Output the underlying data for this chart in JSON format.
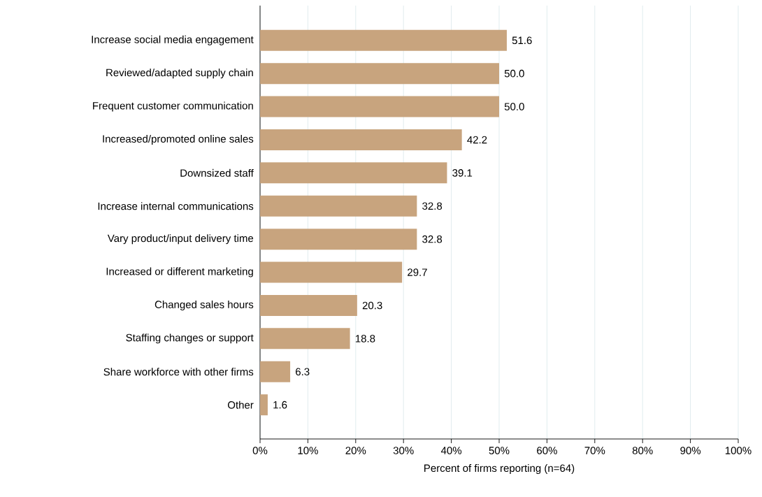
{
  "chart_data": {
    "type": "bar",
    "orientation": "horizontal",
    "xlabel": "Percent of firms reporting (n=64)",
    "categories": [
      "Increase social media engagement",
      "Reviewed/adapted supply chain",
      "Frequent customer communication",
      "Increased/promoted online sales",
      "Downsized staff",
      "Increase internal communications",
      "Vary product/input delivery time",
      "Increased or different marketing",
      "Changed sales hours",
      "Staffing changes or support",
      "Share workforce with other firms",
      "Other"
    ],
    "values": [
      51.6,
      50.0,
      50.0,
      42.2,
      39.1,
      32.8,
      32.8,
      29.7,
      20.3,
      18.8,
      6.3,
      1.6
    ],
    "value_labels": [
      "51.6",
      "50.0",
      "50.0",
      "42.2",
      "39.1",
      "32.8",
      "32.8",
      "29.7",
      "20.3",
      "18.8",
      "6.3",
      "1.6"
    ],
    "color": "#c8a47e",
    "xlim": [
      0,
      100
    ],
    "xticks": [
      {
        "value": 0,
        "label": "0%"
      },
      {
        "value": 10,
        "label": "10%"
      },
      {
        "value": 20,
        "label": "20%"
      },
      {
        "value": 30,
        "label": "30%"
      },
      {
        "value": 40,
        "label": "40%"
      },
      {
        "value": 50,
        "label": "50%"
      },
      {
        "value": 60,
        "label": "60%"
      },
      {
        "value": 70,
        "label": "70%"
      },
      {
        "value": 80,
        "label": "80%"
      },
      {
        "value": 90,
        "label": "90%"
      },
      {
        "value": 100,
        "label": "100%"
      }
    ],
    "grid": "x"
  }
}
